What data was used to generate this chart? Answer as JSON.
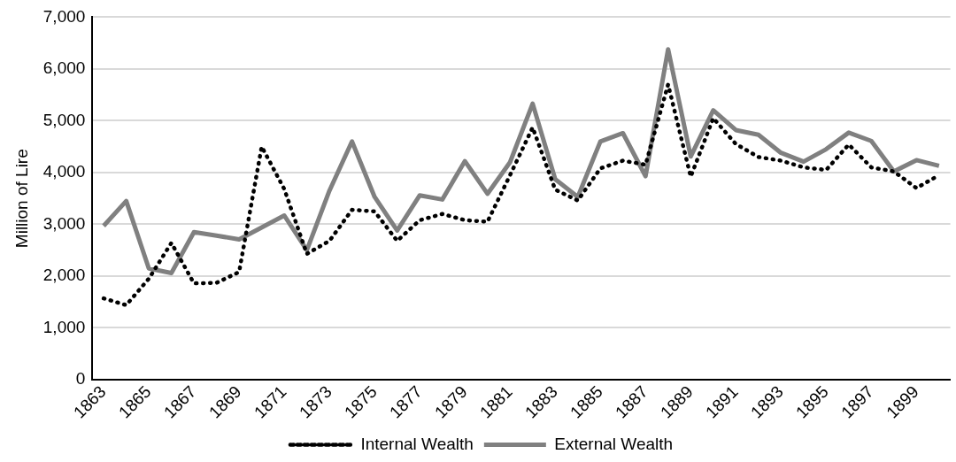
{
  "chart_data": {
    "type": "line",
    "ylabel": "Million of Lire",
    "categories": [
      "1863",
      null,
      "1865",
      null,
      "1867",
      null,
      "1869",
      null,
      "1871",
      null,
      "1873",
      null,
      "1875",
      null,
      "1877",
      null,
      "1879",
      null,
      "1881",
      null,
      "1883",
      null,
      "1885",
      null,
      "1887",
      null,
      "1889",
      null,
      "1891",
      null,
      "1893",
      null,
      "1895",
      null,
      "1897",
      null,
      "1899",
      null
    ],
    "series": [
      {
        "name": "Internal Wealth",
        "color": "#000000",
        "line_style": "dotted",
        "values": [
          1570,
          1440,
          1950,
          2640,
          1860,
          1870,
          2080,
          4500,
          3680,
          2430,
          2680,
          3280,
          3250,
          2680,
          3080,
          3200,
          3080,
          3050,
          3950,
          4870,
          3670,
          3460,
          4080,
          4230,
          4150,
          5700,
          3920,
          5050,
          4550,
          4300,
          4230,
          4100,
          4050,
          4540,
          4100,
          4020,
          3700,
          3950
        ]
      },
      {
        "name": "External Wealth",
        "color": "#808080",
        "line_style": "solid",
        "values": [
          2970,
          3450,
          2150,
          2060,
          2850,
          2780,
          2710,
          2940,
          3170,
          2500,
          3650,
          4600,
          3530,
          2880,
          3560,
          3480,
          4220,
          3590,
          4200,
          5330,
          3870,
          3530,
          4600,
          4760,
          3930,
          6380,
          4310,
          5200,
          4820,
          4730,
          4380,
          4210,
          4450,
          4770,
          4610,
          4020,
          4240,
          4130
        ]
      }
    ],
    "ylim": [
      0,
      7000
    ],
    "yticks": [
      0,
      {
        "value": 1000,
        "label": "1,000"
      },
      {
        "value": 2000,
        "label": "2,000"
      },
      {
        "value": 3000,
        "label": "3,000"
      },
      {
        "value": 4000,
        "label": "4,000"
      },
      {
        "value": 5000,
        "label": "5,000"
      },
      {
        "value": 6000,
        "label": "6,000"
      },
      {
        "value": 7000,
        "label": "7,000"
      }
    ],
    "grid": "y",
    "legend": "bottom",
    "marker": "none"
  }
}
